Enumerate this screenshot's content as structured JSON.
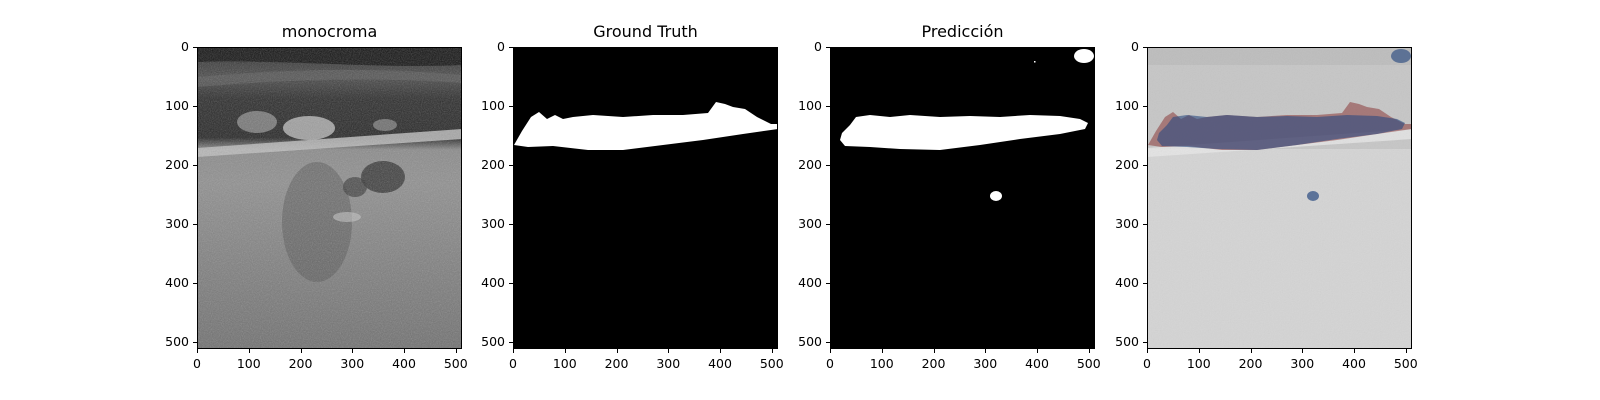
{
  "panels": [
    {
      "title": "monocroma",
      "image": "grayscale ultrasound scan"
    },
    {
      "title": "Ground Truth",
      "image": "binary ground-truth mask"
    },
    {
      "title": "Predicción",
      "image": "binary predicted mask"
    },
    {
      "title": "",
      "image": "ultrasound with ground-truth and prediction overlay"
    }
  ],
  "axes": {
    "x_ticks": [
      "0",
      "100",
      "200",
      "300",
      "400",
      "500"
    ],
    "y_ticks": [
      "0",
      "100",
      "200",
      "300",
      "400",
      "500"
    ],
    "x_range": [
      0,
      512
    ],
    "y_range": [
      0,
      512
    ]
  },
  "colors": {
    "mask_foreground": "#ffffff",
    "mask_background": "#000000",
    "ground_truth_overlay": "#8b3a3a",
    "prediction_overlay": "#2a4a80"
  }
}
